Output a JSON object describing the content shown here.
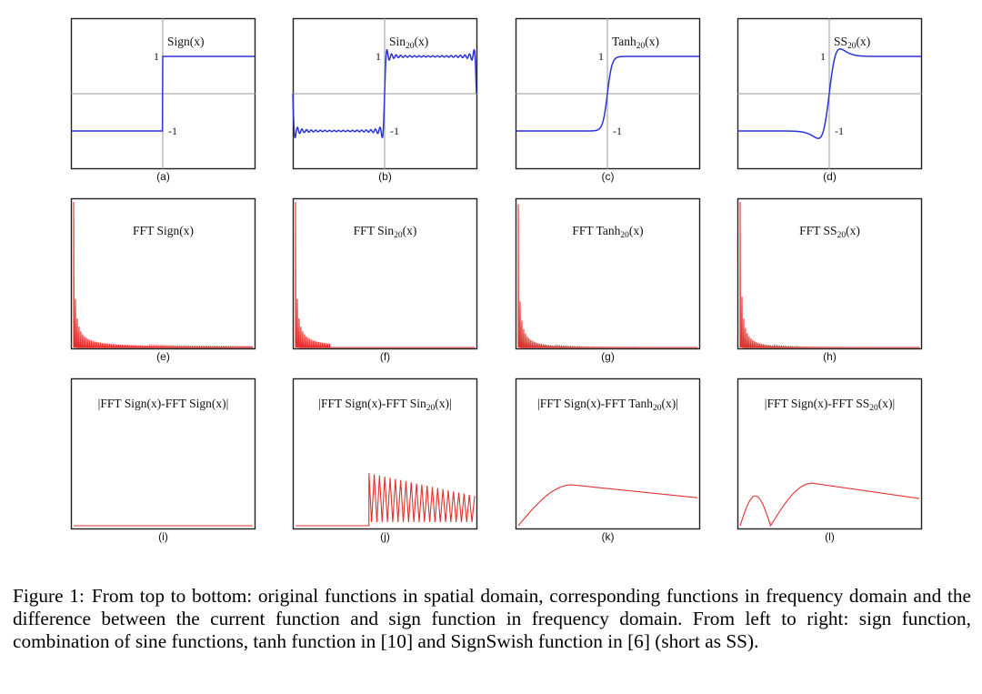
{
  "chart_data": [
    {
      "type": "line",
      "panel": "(a)",
      "title": "Sign(x)",
      "function": "sign",
      "yticks": [
        "1",
        "-1"
      ],
      "ylim": [
        -2,
        2
      ],
      "xlim": [
        -1,
        1
      ]
    },
    {
      "type": "line",
      "panel": "(b)",
      "title": "Sin20(x)",
      "title_base": "Sin",
      "title_sub": "20",
      "title_tail": "(x)",
      "function": "sin20",
      "yticks": [
        "1",
        "-1"
      ],
      "ylim": [
        -2,
        2
      ],
      "xlim": [
        -1,
        1
      ]
    },
    {
      "type": "line",
      "panel": "(c)",
      "title": "Tanh20(x)",
      "title_base": "Tanh",
      "title_sub": "20",
      "title_tail": "(x)",
      "function": "tanh20",
      "yticks": [
        "1",
        "-1"
      ],
      "ylim": [
        -2,
        2
      ],
      "xlim": [
        -1,
        1
      ]
    },
    {
      "type": "line",
      "panel": "(d)",
      "title": "SS20(x)",
      "title_base": "SS",
      "title_sub": "20",
      "title_tail": "(x)",
      "function": "ss20",
      "yticks": [
        "1",
        "-1"
      ],
      "ylim": [
        -2,
        2
      ],
      "xlim": [
        -1,
        1
      ]
    },
    {
      "type": "line",
      "panel": "(e)",
      "title": "FFT Sign(x)",
      "title_base": "FFT Sign(x)",
      "function": "fft_sign",
      "ylim": [
        0,
        1
      ]
    },
    {
      "type": "line",
      "panel": "(f)",
      "title": "FFT Sin20(x)",
      "title_base": "FFT Sin",
      "title_sub": "20",
      "title_tail": "(x)",
      "function": "fft_sin20",
      "ylim": [
        0,
        1
      ]
    },
    {
      "type": "line",
      "panel": "(g)",
      "title": "FFT Tanh20(x)",
      "title_base": "FFT Tanh",
      "title_sub": "20",
      "title_tail": "(x)",
      "function": "fft_tanh20",
      "ylim": [
        0,
        1
      ]
    },
    {
      "type": "line",
      "panel": "(h)",
      "title": "FFT SS20(x)",
      "title_base": "FFT SS",
      "title_sub": "20",
      "title_tail": "(x)",
      "function": "fft_ss20",
      "ylim": [
        0,
        1
      ]
    },
    {
      "type": "line",
      "panel": "(i)",
      "title": "|FFT Sign(x)-FFT Sign(x)|",
      "title_base": "|FFT Sign(x)-FFT Sign(x)|",
      "function": "diff_zero",
      "ylim": [
        0,
        1
      ]
    },
    {
      "type": "line",
      "panel": "(j)",
      "title": "|FFT Sign(x)-FFT Sin20(x)|",
      "title_base": "|FFT Sign(x)-FFT Sin",
      "title_sub": "20",
      "title_tail": "(x)|",
      "function": "diff_sin",
      "ylim": [
        0,
        1
      ]
    },
    {
      "type": "line",
      "panel": "(k)",
      "title": "|FFT Sign(x)-FFT Tanh20(x)|",
      "title_base": "|FFT Sign(x)-FFT Tanh",
      "title_sub": "20",
      "title_tail": "(x)|",
      "function": "diff_tanh",
      "ylim": [
        0,
        1
      ]
    },
    {
      "type": "line",
      "panel": "(l)",
      "title": "|FFT Sign(x)-FFT SS20(x)|",
      "title_base": "|FFT Sign(x)-FFT SS",
      "title_sub": "20",
      "title_tail": "(x)|",
      "function": "diff_ss",
      "ylim": [
        0,
        1
      ]
    }
  ],
  "colors": {
    "spatial": "#2a34d6",
    "frequency": "#e0322e"
  },
  "caption": {
    "label": "Figure 1:",
    "text": "From top to bottom: original functions in spatial domain, corresponding functions in frequency domain and the difference between the current function and sign function in frequency domain. From left to right: sign function, combination of sine functions, tanh function in [10] and SignSwish function in [6] (short as SS)."
  }
}
